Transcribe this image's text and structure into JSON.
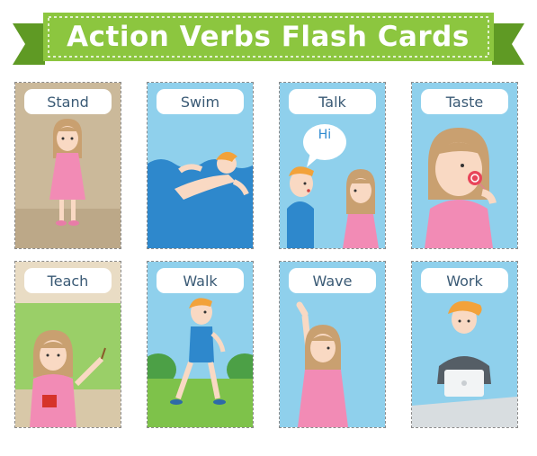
{
  "title": "Action Verbs Flash Cards",
  "cards": [
    {
      "label": "Stand",
      "bg": "#cbb99a"
    },
    {
      "label": "Swim",
      "bg": "#8fd0ec"
    },
    {
      "label": "Talk",
      "bg": "#8fd0ec",
      "bubble": "Hi"
    },
    {
      "label": "Taste",
      "bg": "#8fd0ec"
    },
    {
      "label": "Teach",
      "bg": "#9acf68"
    },
    {
      "label": "Walk",
      "bg": "#8fd0ec"
    },
    {
      "label": "Wave",
      "bg": "#8fd0ec"
    },
    {
      "label": "Work",
      "bg": "#8fd0ec"
    }
  ],
  "colors": {
    "banner": "#8cc63f",
    "banner_dark": "#5f9a24",
    "label_text": "#3a5a75",
    "sky": "#8fd0ec",
    "skin": "#f9d9c3",
    "hair_girl": "#c9a070",
    "hair_boy": "#f2a23a",
    "dress": "#f28bb5"
  }
}
